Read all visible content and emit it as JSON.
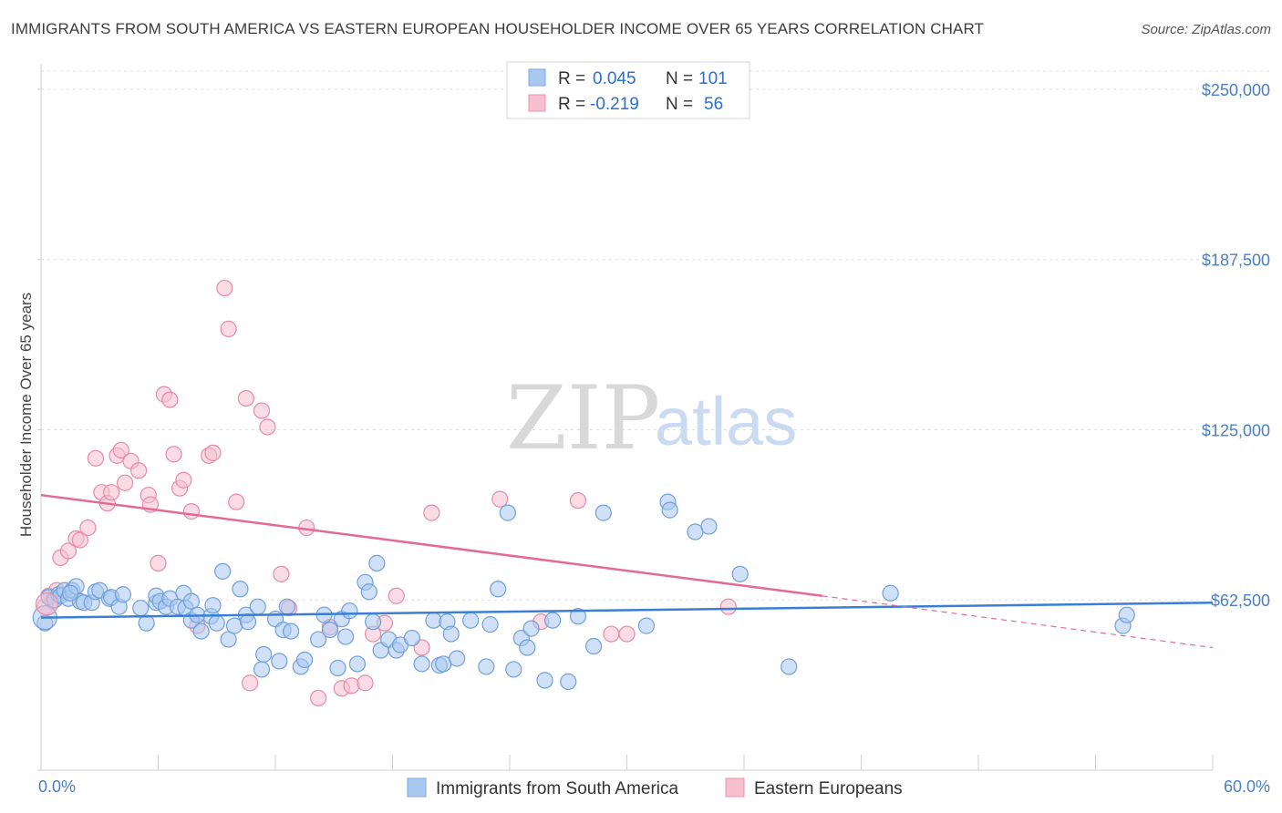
{
  "title": "IMMIGRANTS FROM SOUTH AMERICA VS EASTERN EUROPEAN HOUSEHOLDER INCOME OVER 65 YEARS CORRELATION CHART",
  "source": "Source: ZipAtlas.com",
  "watermark": {
    "zip": "ZIP",
    "atlas": "atlas"
  },
  "legend": {
    "rows": [
      {
        "r_label": "R =",
        "r_value": "0.045",
        "n_label": "N =",
        "n_value": "101",
        "color": "#a9c8f0",
        "stroke": "#7aa6e0"
      },
      {
        "r_label": "R =",
        "r_value": "-0.219",
        "n_label": "N =",
        "n_value": "56",
        "color": "#f7c0d0",
        "stroke": "#ea90ac"
      }
    ]
  },
  "colors": {
    "blue_fill": "#a9c8f0",
    "blue_stroke": "#6f9fdc",
    "blue_line": "#3a7fd5",
    "pink_fill": "#f7c0d0",
    "pink_stroke": "#e68aa8",
    "pink_line": "#e46a95",
    "tick": "#4a7fc8",
    "grid": "#dddddd"
  },
  "chart_data": {
    "type": "scatter",
    "title": "IMMIGRANTS FROM SOUTH AMERICA VS EASTERN EUROPEAN HOUSEHOLDER INCOME OVER 65 YEARS CORRELATION CHART",
    "xlabel": "",
    "ylabel": "Householder Income Over 65 years",
    "xlim": [
      0,
      60
    ],
    "ylim": [
      0,
      257000
    ],
    "x_tick_labels": [
      "0.0%",
      "60.0%"
    ],
    "y_ticks": [
      62500,
      125000,
      187500,
      250000
    ],
    "y_tick_labels": [
      "$62,500",
      "$125,000",
      "$187,500",
      "$250,000"
    ],
    "grid": "horizontal dashed",
    "legend_position": "top-center",
    "series": [
      {
        "name": "Immigrants from South America",
        "color": "#a9c8f0",
        "trend": {
          "x": [
            0,
            60
          ],
          "y": [
            56000,
            61500
          ]
        },
        "points": [
          [
            0.2,
            54000
          ],
          [
            0.4,
            63500
          ],
          [
            0.7,
            62500
          ],
          [
            0.9,
            64500
          ],
          [
            1.0,
            64000
          ],
          [
            1.2,
            66000
          ],
          [
            1.4,
            63000
          ],
          [
            1.6,
            66000
          ],
          [
            1.8,
            67500
          ],
          [
            2.0,
            62000
          ],
          [
            2.2,
            61500
          ],
          [
            2.6,
            61500
          ],
          [
            2.8,
            65500
          ],
          [
            3.0,
            66000
          ],
          [
            3.5,
            63000
          ],
          [
            3.6,
            63500
          ],
          [
            4.0,
            60000
          ],
          [
            4.2,
            64500
          ],
          [
            5.1,
            59500
          ],
          [
            5.4,
            54000
          ],
          [
            5.9,
            61500
          ],
          [
            5.9,
            64000
          ],
          [
            6.1,
            62000
          ],
          [
            6.4,
            60000
          ],
          [
            6.6,
            63000
          ],
          [
            7.0,
            60000
          ],
          [
            7.3,
            65000
          ],
          [
            7.4,
            59500
          ],
          [
            7.7,
            62000
          ],
          [
            7.7,
            55000
          ],
          [
            8.0,
            57000
          ],
          [
            8.2,
            51000
          ],
          [
            8.7,
            56500
          ],
          [
            8.8,
            60500
          ],
          [
            9.0,
            54000
          ],
          [
            9.3,
            73000
          ],
          [
            9.6,
            48000
          ],
          [
            9.9,
            53000
          ],
          [
            10.2,
            66500
          ],
          [
            10.5,
            57000
          ],
          [
            10.6,
            54500
          ],
          [
            11.1,
            60000
          ],
          [
            11.3,
            37000
          ],
          [
            11.4,
            42500
          ],
          [
            12.0,
            55500
          ],
          [
            12.2,
            40000
          ],
          [
            12.4,
            51500
          ],
          [
            12.6,
            60000
          ],
          [
            12.8,
            51000
          ],
          [
            13.3,
            38000
          ],
          [
            13.5,
            40500
          ],
          [
            14.2,
            48000
          ],
          [
            14.5,
            57000
          ],
          [
            14.8,
            51500
          ],
          [
            15.2,
            37500
          ],
          [
            15.4,
            55500
          ],
          [
            15.6,
            49000
          ],
          [
            15.8,
            58500
          ],
          [
            16.2,
            39000
          ],
          [
            16.6,
            69000
          ],
          [
            16.8,
            65500
          ],
          [
            17.0,
            54500
          ],
          [
            17.2,
            76000
          ],
          [
            17.4,
            44000
          ],
          [
            17.8,
            48000
          ],
          [
            18.2,
            44000
          ],
          [
            18.4,
            46000
          ],
          [
            19.0,
            48500
          ],
          [
            19.5,
            39000
          ],
          [
            20.1,
            55000
          ],
          [
            20.4,
            38500
          ],
          [
            20.6,
            39000
          ],
          [
            20.8,
            54500
          ],
          [
            21.0,
            50000
          ],
          [
            21.3,
            41000
          ],
          [
            22.0,
            55000
          ],
          [
            22.8,
            38000
          ],
          [
            23.0,
            53500
          ],
          [
            23.4,
            66500
          ],
          [
            23.9,
            94500
          ],
          [
            24.2,
            37000
          ],
          [
            24.6,
            48500
          ],
          [
            24.9,
            45000
          ],
          [
            25.1,
            52000
          ],
          [
            25.8,
            33000
          ],
          [
            26.2,
            55000
          ],
          [
            27.0,
            32500
          ],
          [
            27.5,
            56500
          ],
          [
            28.3,
            45500
          ],
          [
            28.8,
            94500
          ],
          [
            31.0,
            53000
          ],
          [
            32.1,
            98500
          ],
          [
            32.2,
            95500
          ],
          [
            33.5,
            87500
          ],
          [
            34.2,
            89500
          ],
          [
            35.8,
            72000
          ],
          [
            38.3,
            38000
          ],
          [
            43.5,
            65000
          ],
          [
            55.4,
            53000
          ],
          [
            55.6,
            57000
          ],
          [
            1.5,
            65000
          ]
        ]
      },
      {
        "name": "Eastern Europeans",
        "color": "#f7c0d0",
        "trend": {
          "x": [
            0,
            40
          ],
          "y": [
            101000,
            64000
          ]
        },
        "trend_dashed": {
          "x": [
            40,
            60
          ],
          "y": [
            64000,
            45000
          ]
        },
        "points": [
          [
            0.2,
            60000
          ],
          [
            0.4,
            64000
          ],
          [
            0.6,
            62000
          ],
          [
            0.8,
            66000
          ],
          [
            1.0,
            78000
          ],
          [
            1.4,
            80500
          ],
          [
            1.8,
            85000
          ],
          [
            2.0,
            84500
          ],
          [
            2.4,
            89000
          ],
          [
            2.8,
            114500
          ],
          [
            3.1,
            102000
          ],
          [
            3.4,
            98000
          ],
          [
            3.6,
            102000
          ],
          [
            3.9,
            115500
          ],
          [
            4.1,
            117500
          ],
          [
            4.3,
            105500
          ],
          [
            4.6,
            113500
          ],
          [
            5.0,
            110000
          ],
          [
            5.5,
            101000
          ],
          [
            5.6,
            97500
          ],
          [
            6.0,
            76000
          ],
          [
            6.3,
            138000
          ],
          [
            6.6,
            136000
          ],
          [
            6.8,
            116000
          ],
          [
            7.1,
            103500
          ],
          [
            7.3,
            106500
          ],
          [
            7.7,
            95000
          ],
          [
            8.0,
            53000
          ],
          [
            8.6,
            115500
          ],
          [
            8.8,
            116500
          ],
          [
            9.4,
            177000
          ],
          [
            9.6,
            162000
          ],
          [
            10.0,
            98500
          ],
          [
            10.5,
            136500
          ],
          [
            10.7,
            32000
          ],
          [
            11.3,
            132000
          ],
          [
            11.6,
            126000
          ],
          [
            12.3,
            72000
          ],
          [
            12.7,
            59500
          ],
          [
            13.6,
            89000
          ],
          [
            14.2,
            26500
          ],
          [
            14.8,
            52500
          ],
          [
            15.4,
            30000
          ],
          [
            15.9,
            31000
          ],
          [
            16.6,
            32000
          ],
          [
            17.0,
            50000
          ],
          [
            17.6,
            54000
          ],
          [
            18.2,
            64000
          ],
          [
            19.5,
            45000
          ],
          [
            20.0,
            94500
          ],
          [
            23.5,
            99500
          ],
          [
            25.6,
            54500
          ],
          [
            27.5,
            99000
          ],
          [
            29.2,
            50000
          ],
          [
            30.0,
            50000
          ],
          [
            35.2,
            60000
          ]
        ]
      }
    ]
  },
  "bottom_legend": [
    "Immigrants from South America",
    "Eastern Europeans"
  ]
}
